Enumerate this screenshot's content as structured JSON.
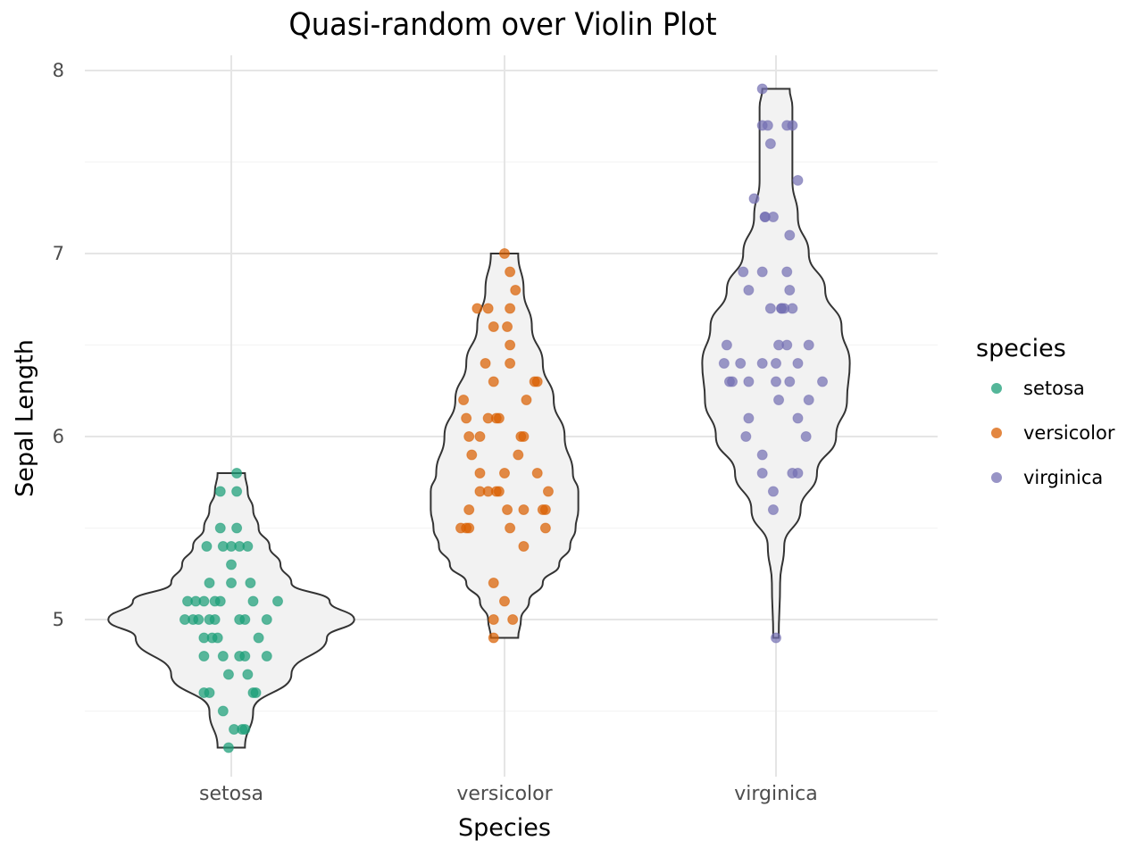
{
  "chart_data": {
    "type": "violin+scatter",
    "title": "Quasi-random over Violin Plot",
    "xlabel": "Species",
    "ylabel": "Sepal Length",
    "categories": [
      "setosa",
      "versicolor",
      "virginica"
    ],
    "yticks": [
      5,
      6,
      7,
      8
    ],
    "ylim": [
      4.1,
      8.1
    ],
    "grid": true,
    "legend": {
      "title": "species",
      "position": "right",
      "entries": [
        "setosa",
        "versicolor",
        "virginica"
      ]
    },
    "colors": {
      "setosa": "#1b9e77",
      "versicolor": "#d95f02",
      "virginica": "#7570b3"
    },
    "violin_fill": "#f2f2f2",
    "violin_stroke": "#333333",
    "series": [
      {
        "name": "setosa",
        "min": 4.3,
        "max": 5.8,
        "violin_halfwidth": [
          [
            4.3,
            0.05
          ],
          [
            4.5,
            0.08
          ],
          [
            4.7,
            0.22
          ],
          [
            4.9,
            0.35
          ],
          [
            5.0,
            0.45
          ],
          [
            5.1,
            0.36
          ],
          [
            5.2,
            0.22
          ],
          [
            5.3,
            0.18
          ],
          [
            5.4,
            0.14
          ],
          [
            5.5,
            0.1
          ],
          [
            5.6,
            0.08
          ],
          [
            5.7,
            0.06
          ],
          [
            5.8,
            0.05
          ]
        ],
        "points": [
          [
            0.02,
            5.8
          ],
          [
            -0.04,
            5.7
          ],
          [
            0.02,
            5.7
          ],
          [
            -0.04,
            5.5
          ],
          [
            0.02,
            5.5
          ],
          [
            -0.09,
            5.4
          ],
          [
            -0.03,
            5.4
          ],
          [
            0,
            5.4
          ],
          [
            0.03,
            5.4
          ],
          [
            0.06,
            5.4
          ],
          [
            0,
            5.3
          ],
          [
            -0.08,
            5.2
          ],
          [
            0,
            5.2
          ],
          [
            0.07,
            5.2
          ],
          [
            -0.16,
            5.1
          ],
          [
            -0.13,
            5.1
          ],
          [
            -0.1,
            5.1
          ],
          [
            -0.06,
            5.1
          ],
          [
            -0.04,
            5.1
          ],
          [
            0.08,
            5.1
          ],
          [
            0.17,
            5.1
          ],
          [
            -0.17,
            5.0
          ],
          [
            -0.14,
            5.0
          ],
          [
            -0.12,
            5.0
          ],
          [
            -0.08,
            5.0
          ],
          [
            -0.06,
            5.0
          ],
          [
            0.03,
            5.0
          ],
          [
            0.05,
            5.0
          ],
          [
            0.13,
            5.0
          ],
          [
            -0.1,
            4.9
          ],
          [
            -0.07,
            4.9
          ],
          [
            -0.05,
            4.9
          ],
          [
            0.1,
            4.9
          ],
          [
            -0.1,
            4.8
          ],
          [
            -0.03,
            4.8
          ],
          [
            0.03,
            4.8
          ],
          [
            0.05,
            4.8
          ],
          [
            0.13,
            4.8
          ],
          [
            -0.01,
            4.7
          ],
          [
            0.06,
            4.7
          ],
          [
            -0.1,
            4.6
          ],
          [
            -0.08,
            4.6
          ],
          [
            0.08,
            4.6
          ],
          [
            0.09,
            4.6
          ],
          [
            -0.03,
            4.5
          ],
          [
            0.01,
            4.4
          ],
          [
            0.04,
            4.4
          ],
          [
            0.05,
            4.4
          ],
          [
            -0.01,
            4.3
          ]
        ]
      },
      {
        "name": "versicolor",
        "min": 4.9,
        "max": 7.0,
        "violin_halfwidth": [
          [
            4.9,
            0.05
          ],
          [
            5.0,
            0.06
          ],
          [
            5.1,
            0.09
          ],
          [
            5.2,
            0.14
          ],
          [
            5.3,
            0.2
          ],
          [
            5.4,
            0.24
          ],
          [
            5.5,
            0.26
          ],
          [
            5.6,
            0.27
          ],
          [
            5.7,
            0.27
          ],
          [
            5.8,
            0.25
          ],
          [
            6.0,
            0.22
          ],
          [
            6.2,
            0.18
          ],
          [
            6.4,
            0.14
          ],
          [
            6.6,
            0.1
          ],
          [
            6.8,
            0.07
          ],
          [
            7.0,
            0.05
          ]
        ],
        "points": [
          [
            0,
            7.0
          ],
          [
            0.02,
            6.9
          ],
          [
            0.04,
            6.8
          ],
          [
            -0.1,
            6.7
          ],
          [
            -0.06,
            6.7
          ],
          [
            0.02,
            6.7
          ],
          [
            -0.04,
            6.6
          ],
          [
            0.01,
            6.6
          ],
          [
            0.02,
            6.5
          ],
          [
            -0.07,
            6.4
          ],
          [
            0.02,
            6.4
          ],
          [
            -0.04,
            6.3
          ],
          [
            0.11,
            6.3
          ],
          [
            0.12,
            6.3
          ],
          [
            -0.15,
            6.2
          ],
          [
            0.08,
            6.2
          ],
          [
            -0.14,
            6.1
          ],
          [
            -0.06,
            6.1
          ],
          [
            -0.03,
            6.1
          ],
          [
            -0.02,
            6.1
          ],
          [
            -0.13,
            6.0
          ],
          [
            -0.09,
            6.0
          ],
          [
            0.06,
            6.0
          ],
          [
            0.07,
            6.0
          ],
          [
            -0.12,
            5.9
          ],
          [
            0.05,
            5.9
          ],
          [
            -0.09,
            5.8
          ],
          [
            0,
            5.8
          ],
          [
            0.12,
            5.8
          ],
          [
            -0.09,
            5.7
          ],
          [
            -0.06,
            5.7
          ],
          [
            -0.03,
            5.7
          ],
          [
            -0.02,
            5.7
          ],
          [
            0.16,
            5.7
          ],
          [
            -0.13,
            5.6
          ],
          [
            0.01,
            5.6
          ],
          [
            0.07,
            5.6
          ],
          [
            0.15,
            5.6
          ],
          [
            0.14,
            5.6
          ],
          [
            -0.16,
            5.5
          ],
          [
            -0.14,
            5.5
          ],
          [
            -0.13,
            5.5
          ],
          [
            0.02,
            5.5
          ],
          [
            0.15,
            5.5
          ],
          [
            0.07,
            5.4
          ],
          [
            -0.04,
            5.2
          ],
          [
            0,
            5.1
          ],
          [
            -0.04,
            5.0
          ],
          [
            0.03,
            5.0
          ],
          [
            -0.04,
            4.9
          ]
        ]
      },
      {
        "name": "virginica",
        "min": 4.9,
        "max": 7.9,
        "violin_halfwidth": [
          [
            4.9,
            0.01
          ],
          [
            5.2,
            0.015
          ],
          [
            5.4,
            0.03
          ],
          [
            5.6,
            0.09
          ],
          [
            5.8,
            0.15
          ],
          [
            6.0,
            0.22
          ],
          [
            6.2,
            0.26
          ],
          [
            6.4,
            0.27
          ],
          [
            6.6,
            0.24
          ],
          [
            6.8,
            0.18
          ],
          [
            7.0,
            0.12
          ],
          [
            7.2,
            0.08
          ],
          [
            7.4,
            0.06
          ],
          [
            7.6,
            0.06
          ],
          [
            7.8,
            0.06
          ],
          [
            7.9,
            0.05
          ]
        ],
        "points": [
          [
            -0.05,
            7.9
          ],
          [
            -0.05,
            7.7
          ],
          [
            -0.03,
            7.7
          ],
          [
            0.04,
            7.7
          ],
          [
            0.06,
            7.7
          ],
          [
            -0.02,
            7.6
          ],
          [
            0.08,
            7.4
          ],
          [
            -0.08,
            7.3
          ],
          [
            -0.04,
            7.2
          ],
          [
            -0.04,
            7.2
          ],
          [
            -0.01,
            7.2
          ],
          [
            0.05,
            7.1
          ],
          [
            -0.12,
            6.9
          ],
          [
            -0.05,
            6.9
          ],
          [
            0.04,
            6.9
          ],
          [
            -0.1,
            6.8
          ],
          [
            0.05,
            6.8
          ],
          [
            -0.02,
            6.7
          ],
          [
            0.02,
            6.7
          ],
          [
            0.02,
            6.7
          ],
          [
            0.03,
            6.7
          ],
          [
            0.06,
            6.7
          ],
          [
            -0.18,
            6.5
          ],
          [
            0.01,
            6.5
          ],
          [
            0.04,
            6.5
          ],
          [
            0.12,
            6.5
          ],
          [
            -0.19,
            6.4
          ],
          [
            -0.13,
            6.4
          ],
          [
            -0.05,
            6.4
          ],
          [
            0,
            6.4
          ],
          [
            0.08,
            6.4
          ],
          [
            -0.17,
            6.3
          ],
          [
            -0.16,
            6.3
          ],
          [
            -0.1,
            6.3
          ],
          [
            0,
            6.3
          ],
          [
            0.05,
            6.3
          ],
          [
            0.17,
            6.3
          ],
          [
            0.01,
            6.2
          ],
          [
            0.12,
            6.2
          ],
          [
            -0.1,
            6.1
          ],
          [
            0.08,
            6.1
          ],
          [
            -0.11,
            6.0
          ],
          [
            0.11,
            6.0
          ],
          [
            -0.05,
            5.9
          ],
          [
            -0.05,
            5.8
          ],
          [
            0.06,
            5.8
          ],
          [
            0.08,
            5.8
          ],
          [
            -0.01,
            5.7
          ],
          [
            -0.01,
            5.6
          ],
          [
            0,
            4.9
          ]
        ]
      }
    ]
  }
}
